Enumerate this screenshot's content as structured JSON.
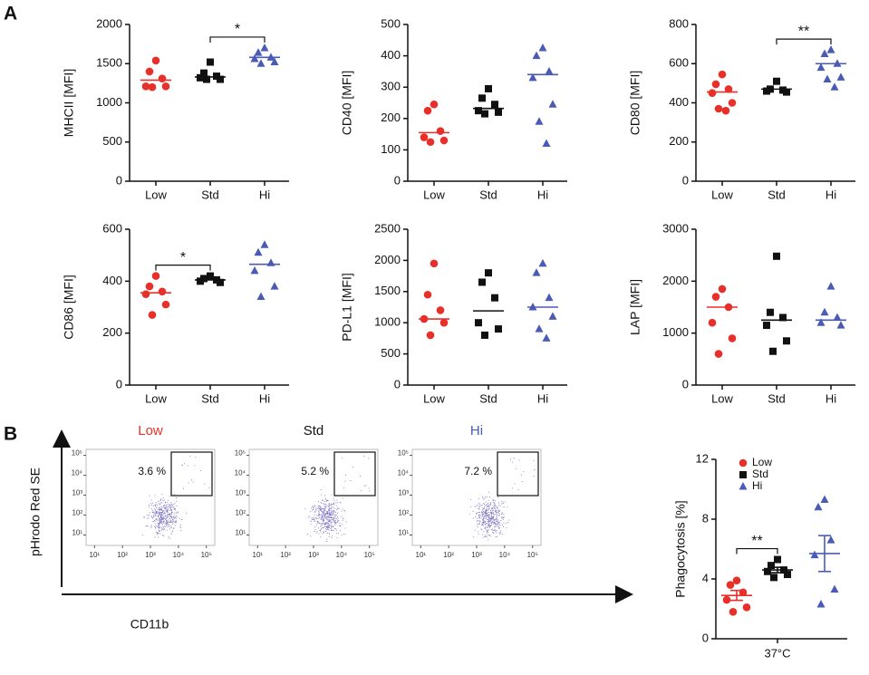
{
  "panel_labels": [
    "A",
    "B"
  ],
  "groups": [
    {
      "name": "Low",
      "color": "#e8302a",
      "marker": "circle"
    },
    {
      "name": "Std",
      "color": "#111111",
      "marker": "square"
    },
    {
      "name": "Hi",
      "color": "#4a5bb5",
      "marker": "triangle"
    }
  ],
  "flow_axes": {
    "xlabel": "CD11b",
    "ylabel": "pHrodo Red SE"
  },
  "chart_data": [
    {
      "type": "strip",
      "ylabel": "MHCII [MFI]",
      "ylim": [
        0,
        2000
      ],
      "yticks": [
        0,
        500,
        1000,
        1500,
        2000
      ],
      "points": [
        [
          1540,
          1400,
          1310,
          1210,
          1210,
          1200
        ],
        [
          1520,
          1380,
          1340,
          1320,
          1300,
          1300
        ],
        [
          1700,
          1640,
          1580,
          1560,
          1520,
          1500
        ]
      ],
      "lines": [
        1290,
        1330,
        1580
      ],
      "significance": [
        {
          "groups": [
            "Std",
            "Hi"
          ],
          "label": "*"
        }
      ]
    },
    {
      "type": "strip",
      "ylabel": "CD40 [MFI]",
      "ylim": [
        0,
        500
      ],
      "yticks": [
        0,
        100,
        200,
        300,
        400,
        500
      ],
      "points": [
        [
          245,
          225,
          160,
          140,
          130,
          125
        ],
        [
          295,
          265,
          245,
          225,
          220,
          215
        ],
        [
          425,
          400,
          350,
          330,
          245,
          190,
          120
        ]
      ],
      "lines": [
        155,
        232,
        340
      ],
      "significance": []
    },
    {
      "type": "strip",
      "ylabel": "CD80 [MFI]",
      "ylim": [
        0,
        800
      ],
      "yticks": [
        0,
        200,
        400,
        600,
        800
      ],
      "points": [
        [
          545,
          495,
          470,
          450,
          400,
          370,
          360
        ],
        [
          510,
          470,
          465,
          460,
          455
        ],
        [
          670,
          650,
          600,
          580,
          530,
          520,
          480
        ]
      ],
      "lines": [
        455,
        470,
        600
      ],
      "significance": [
        {
          "groups": [
            "Std",
            "Hi"
          ],
          "label": "**"
        }
      ]
    },
    {
      "type": "strip",
      "ylabel": "CD86 [MFI]",
      "ylim": [
        0,
        600
      ],
      "yticks": [
        0,
        200,
        400,
        600
      ],
      "points": [
        [
          420,
          380,
          360,
          350,
          310,
          270
        ],
        [
          420,
          410,
          405,
          400,
          395
        ],
        [
          540,
          510,
          470,
          440,
          380,
          340
        ]
      ],
      "lines": [
        355,
        405,
        465
      ],
      "significance": [
        {
          "groups": [
            "Low",
            "Std"
          ],
          "label": "*"
        }
      ]
    },
    {
      "type": "strip",
      "ylabel": "PD-L1 [MFI]",
      "ylim": [
        0,
        2500
      ],
      "yticks": [
        0,
        500,
        1000,
        1500,
        2000,
        2500
      ],
      "points": [
        [
          1950,
          1450,
          1200,
          1060,
          1000,
          800
        ],
        [
          1800,
          1650,
          1400,
          1000,
          900,
          800
        ],
        [
          1950,
          1800,
          1400,
          1250,
          1100,
          900,
          750
        ]
      ],
      "lines": [
        1060,
        1190,
        1250
      ],
      "significance": []
    },
    {
      "type": "strip",
      "ylabel": "LAP [MFI]",
      "ylim": [
        0,
        3000
      ],
      "yticks": [
        0,
        1000,
        2000,
        3000
      ],
      "points": [
        [
          1850,
          1700,
          1500,
          1200,
          900,
          600
        ],
        [
          2480,
          1400,
          1300,
          1150,
          850,
          650
        ],
        [
          1900,
          1400,
          1300,
          1200,
          1150
        ]
      ],
      "lines": [
        1500,
        1250,
        1250
      ],
      "significance": []
    },
    {
      "type": "flow",
      "title": "Low",
      "title_color": "#e8302a",
      "gate": {
        "value": 3.6,
        "label": "3.6 %"
      },
      "xlim": [
        5,
        200000
      ],
      "ylim": [
        3,
        200000
      ],
      "xticks": [
        {
          "value": 10,
          "label": "10¹"
        },
        {
          "value": 100,
          "label": "10²"
        },
        {
          "value": 1000,
          "label": "10³"
        },
        {
          "value": 10000,
          "label": "10⁴"
        },
        {
          "value": 100000,
          "label": "10⁵"
        }
      ],
      "yticks": [
        {
          "value": 10,
          "label": "10¹"
        },
        {
          "value": 100,
          "label": "10²"
        },
        {
          "value": 1000,
          "label": "10³"
        },
        {
          "value": 10000,
          "label": "10⁴"
        },
        {
          "value": 100000,
          "label": "10⁵"
        }
      ]
    },
    {
      "type": "flow",
      "title": "Std",
      "title_color": "#111111",
      "gate": {
        "value": 5.2,
        "label": "5.2 %"
      },
      "xlim": [
        5,
        200000
      ],
      "ylim": [
        3,
        200000
      ],
      "xticks": [
        {
          "value": 10,
          "label": "10¹"
        },
        {
          "value": 100,
          "label": "10²"
        },
        {
          "value": 1000,
          "label": "10³"
        },
        {
          "value": 10000,
          "label": "10⁴"
        },
        {
          "value": 100000,
          "label": "10⁵"
        }
      ],
      "yticks": [
        {
          "value": 10,
          "label": "10¹"
        },
        {
          "value": 100,
          "label": "10²"
        },
        {
          "value": 1000,
          "label": "10³"
        },
        {
          "value": 10000,
          "label": "10⁴"
        },
        {
          "value": 100000,
          "label": "10⁵"
        }
      ]
    },
    {
      "type": "flow",
      "title": "Hi",
      "title_color": "#4a5bb5",
      "gate": {
        "value": 7.2,
        "label": "7.2 %"
      },
      "xlim": [
        5,
        200000
      ],
      "ylim": [
        3,
        200000
      ],
      "xticks": [
        {
          "value": 10,
          "label": "10¹"
        },
        {
          "value": 100,
          "label": "10²"
        },
        {
          "value": 1000,
          "label": "10³"
        },
        {
          "value": 10000,
          "label": "10⁴"
        },
        {
          "value": 100000,
          "label": "10⁵"
        }
      ],
      "yticks": [
        {
          "value": 10,
          "label": "10¹"
        },
        {
          "value": 100,
          "label": "10²"
        },
        {
          "value": 1000,
          "label": "10³"
        },
        {
          "value": 10000,
          "label": "10⁴"
        },
        {
          "value": 100000,
          "label": "10⁵"
        }
      ]
    },
    {
      "type": "strip",
      "ylabel": "Phagocytosis [%]",
      "xlabel": "37°C",
      "ylim": [
        0,
        12
      ],
      "yticks": [
        0,
        4,
        8,
        12
      ],
      "points": [
        [
          3.9,
          3.6,
          3.1,
          2.6,
          2.1,
          1.8
        ],
        [
          5.3,
          4.9,
          4.6,
          4.5,
          4.3,
          4.1
        ],
        [
          9.3,
          8.8,
          6.6,
          5.6,
          3.3,
          2.3
        ]
      ],
      "lines": [
        2.9,
        4.6,
        5.7
      ],
      "errors": [
        0.33,
        0.18,
        1.2
      ],
      "legend": true,
      "significance": [
        {
          "groups": [
            "Low",
            "Std"
          ],
          "label": "**"
        }
      ]
    }
  ]
}
